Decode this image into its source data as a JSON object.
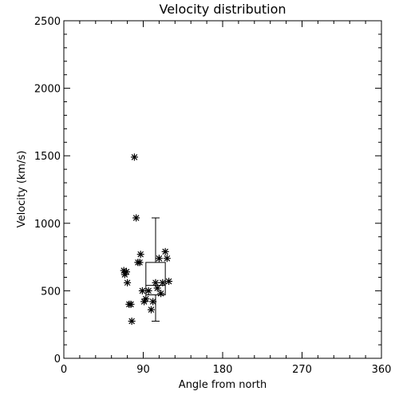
{
  "chart_data": {
    "type": "scatter",
    "title": "Velocity distribution",
    "xlabel": "Angle from north",
    "ylabel": "Velocity (km/s)",
    "xlim": [
      0,
      360
    ],
    "ylim": [
      0,
      2500
    ],
    "xticks": [
      0,
      90,
      180,
      270,
      360
    ],
    "yticks": [
      0,
      500,
      1000,
      1500,
      2000,
      2500
    ],
    "xtick_labels": [
      "0",
      "90",
      "180",
      "270",
      "360"
    ],
    "ytick_labels": [
      "0",
      "500",
      "1000",
      "1500",
      "2000",
      "2500"
    ],
    "grid": false,
    "marker": "asterisk",
    "points": [
      {
        "x": 68,
        "y": 650
      },
      {
        "x": 69,
        "y": 620
      },
      {
        "x": 71,
        "y": 640
      },
      {
        "x": 72,
        "y": 560
      },
      {
        "x": 74,
        "y": 400
      },
      {
        "x": 76,
        "y": 400
      },
      {
        "x": 77,
        "y": 275
      },
      {
        "x": 80,
        "y": 1490
      },
      {
        "x": 82,
        "y": 1040
      },
      {
        "x": 84,
        "y": 710
      },
      {
        "x": 86,
        "y": 710
      },
      {
        "x": 87,
        "y": 770
      },
      {
        "x": 89,
        "y": 500
      },
      {
        "x": 91,
        "y": 420
      },
      {
        "x": 93,
        "y": 440
      },
      {
        "x": 96,
        "y": 500
      },
      {
        "x": 99,
        "y": 360
      },
      {
        "x": 101,
        "y": 420
      },
      {
        "x": 104,
        "y": 560
      },
      {
        "x": 106,
        "y": 520
      },
      {
        "x": 108,
        "y": 740
      },
      {
        "x": 110,
        "y": 480
      },
      {
        "x": 112,
        "y": 560
      },
      {
        "x": 115,
        "y": 790
      },
      {
        "x": 117,
        "y": 740
      },
      {
        "x": 119,
        "y": 570
      }
    ],
    "boxplot": {
      "center_x": 104,
      "half_width": 11,
      "min": 275,
      "q1": 470,
      "median": 540,
      "q3": 710,
      "max": 1040
    }
  }
}
